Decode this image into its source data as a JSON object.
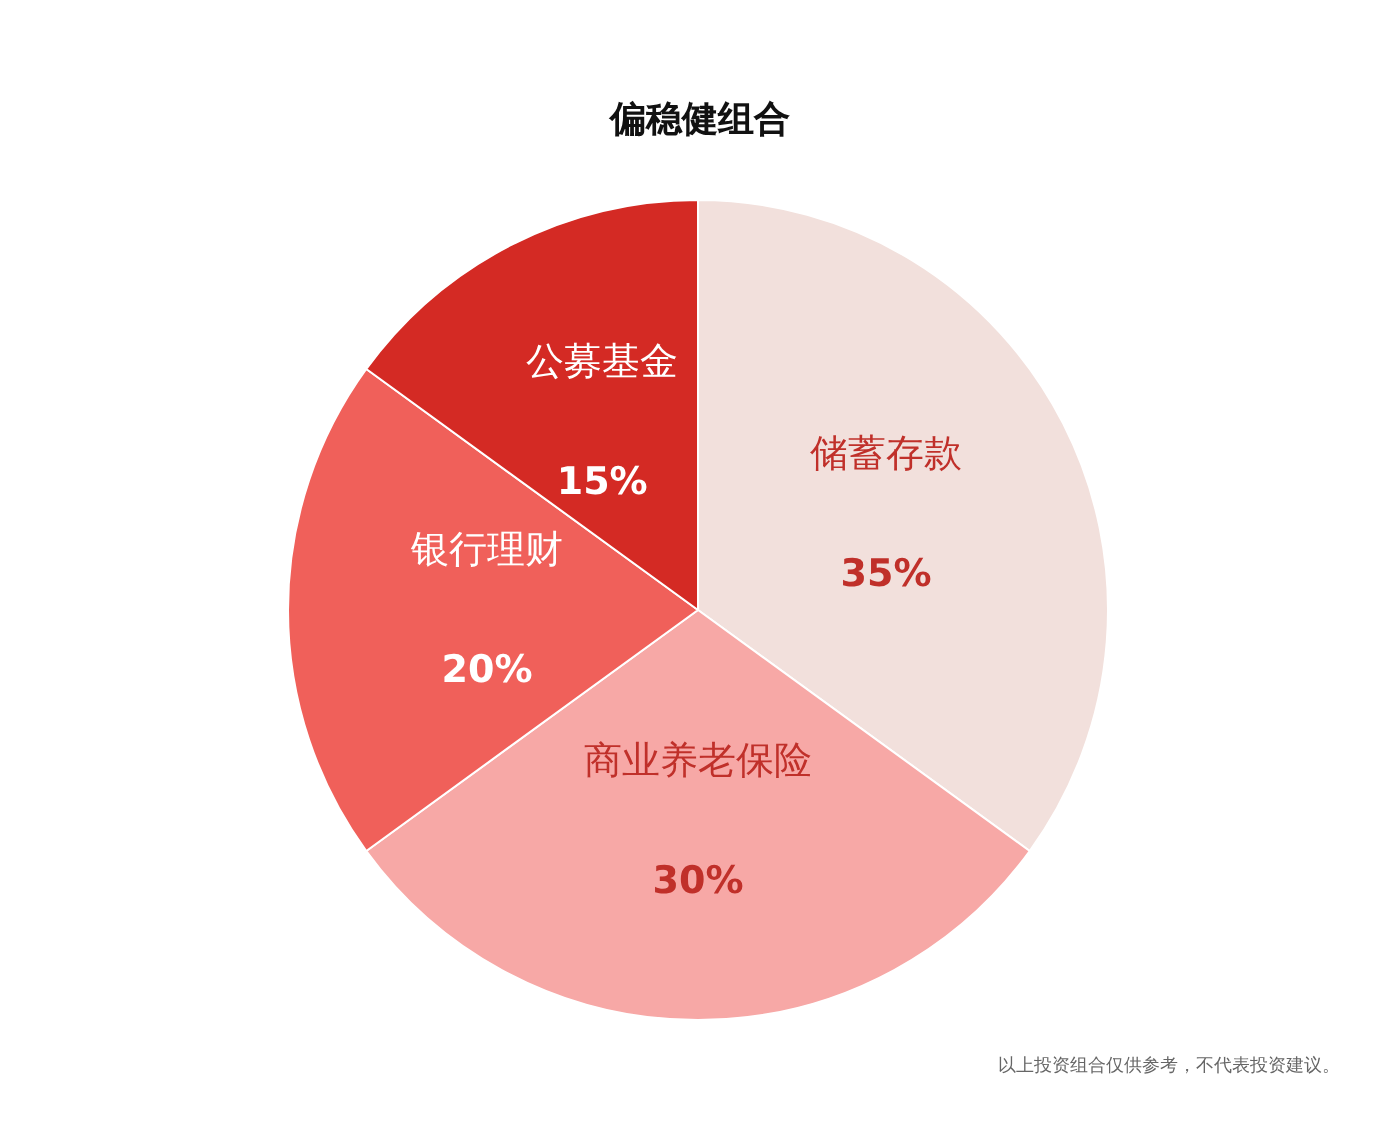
{
  "chart_data": {
    "type": "pie",
    "title": "偏稳健组合",
    "categories": [
      "储蓄存款",
      "商业养老保险",
      "银行理财",
      "公募基金"
    ],
    "values": [
      35,
      30,
      20,
      15
    ],
    "colors": [
      "#f2e0dc",
      "#f7a8a6",
      "#f0605a",
      "#d42a24"
    ],
    "value_labels": [
      "35%",
      "30%",
      "20%",
      "15%"
    ],
    "legend": false,
    "annotations": [
      "以上投资组合仅供参考，不代表投资建议。"
    ]
  }
}
